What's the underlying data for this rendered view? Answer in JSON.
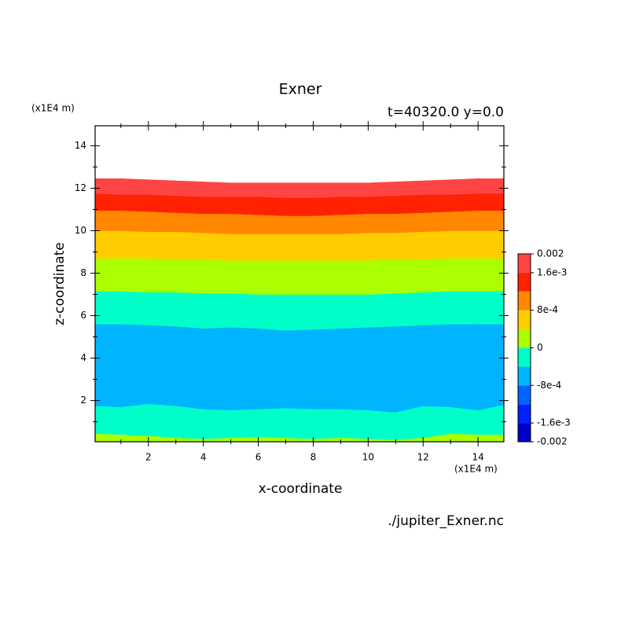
{
  "chart_data": {
    "type": "contourf",
    "title": "Exner",
    "subtitle": "t=40320.0 y=0.0",
    "y_unit": "(x1E4 m)",
    "x_unit": "(x1E4 m)",
    "x_label": "x-coordinate",
    "y_label": "z-coordinate",
    "source": "./jupiter_Exner.nc",
    "xlim": [
      0.06,
      14.94
    ],
    "ylim": [
      0.06,
      14.94
    ],
    "xticks": [
      2,
      4,
      6,
      8,
      10,
      12,
      14
    ],
    "yticks": [
      2,
      4,
      6,
      8,
      10,
      12,
      14
    ],
    "xminorticks": [
      1,
      3,
      5,
      7,
      9,
      11,
      13
    ],
    "yminorticks": [
      1,
      3,
      5,
      7,
      9,
      11,
      13
    ],
    "x": [
      0.06,
      1,
      2,
      3,
      4,
      5,
      6,
      7,
      8,
      9,
      10,
      11,
      12,
      13,
      14,
      14.94
    ],
    "bands": [
      {
        "color": "#aaff00",
        "top": [
          0.45,
          0.4,
          0.35,
          0.25,
          0.2,
          0.25,
          0.3,
          0.25,
          0.2,
          0.25,
          0.2,
          0.15,
          0.25,
          0.45,
          0.4,
          0.4
        ]
      },
      {
        "color": "#00ffc8",
        "top": [
          1.75,
          1.7,
          1.85,
          1.75,
          1.6,
          1.55,
          1.6,
          1.65,
          1.6,
          1.6,
          1.55,
          1.45,
          1.75,
          1.7,
          1.55,
          1.8
        ]
      },
      {
        "color": "#00b4ff",
        "top": [
          5.6,
          5.6,
          5.55,
          5.5,
          5.4,
          5.45,
          5.4,
          5.3,
          5.35,
          5.4,
          5.45,
          5.5,
          5.55,
          5.6,
          5.6,
          5.6
        ]
      },
      {
        "color": "#00ffc8",
        "top": [
          7.15,
          7.15,
          7.1,
          7.1,
          7.05,
          7.05,
          7.0,
          7.0,
          7.0,
          7.0,
          7.0,
          7.05,
          7.1,
          7.15,
          7.15,
          7.15
        ]
      },
      {
        "color": "#aaff00",
        "top": [
          8.7,
          8.7,
          8.7,
          8.65,
          8.65,
          8.6,
          8.6,
          8.6,
          8.6,
          8.6,
          8.6,
          8.65,
          8.65,
          8.7,
          8.7,
          8.7
        ]
      },
      {
        "color": "#ffcc00",
        "top": [
          10.0,
          10.0,
          9.95,
          9.95,
          9.9,
          9.85,
          9.85,
          9.85,
          9.85,
          9.85,
          9.9,
          9.9,
          9.95,
          10.0,
          10.0,
          10.0
        ]
      },
      {
        "color": "#ff8800",
        "top": [
          10.95,
          10.95,
          10.9,
          10.85,
          10.8,
          10.8,
          10.75,
          10.7,
          10.7,
          10.75,
          10.8,
          10.8,
          10.85,
          10.9,
          10.95,
          10.95
        ]
      },
      {
        "color": "#ff2200",
        "top": [
          11.75,
          11.7,
          11.7,
          11.65,
          11.6,
          11.6,
          11.6,
          11.55,
          11.55,
          11.6,
          11.6,
          11.65,
          11.7,
          11.7,
          11.75,
          11.75
        ]
      },
      {
        "color": "#ff4444",
        "top": [
          12.45,
          12.45,
          12.4,
          12.35,
          12.3,
          12.25,
          12.25,
          12.25,
          12.25,
          12.25,
          12.25,
          12.3,
          12.35,
          12.4,
          12.45,
          12.45
        ]
      }
    ],
    "colorbar": {
      "levels": [
        -0.002,
        -0.0016,
        -0.0012,
        -0.0008,
        -0.0004,
        0,
        0.0004,
        0.0008,
        0.0012,
        0.0016,
        0.002
      ],
      "colors": [
        "#0000c8",
        "#0022ff",
        "#0064ff",
        "#00b4ff",
        "#00ffc8",
        "#aaff00",
        "#ffcc00",
        "#ff8800",
        "#ff2200",
        "#ff4444"
      ],
      "ticks": [
        {
          "value": 0.002,
          "label": "0.002"
        },
        {
          "value": 0.0016,
          "label": "1.6e-3"
        },
        {
          "value": 0.0008,
          "label": "8e-4"
        },
        0,
        {
          "value": -0.0008,
          "label": "-8e-4"
        },
        {
          "value": -0.0016,
          "label": "-1.6e-3"
        },
        {
          "value": -0.002,
          "label": "-0.002"
        }
      ]
    }
  }
}
